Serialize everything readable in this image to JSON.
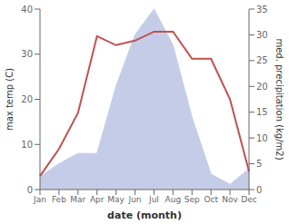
{
  "chart_data": {
    "type": "line",
    "xlabel": "date (month)",
    "ylabel": "max temp (C)",
    "y2label": "med. precipitation (kg/m2)",
    "categories": [
      "Jan",
      "Feb",
      "Mar",
      "Apr",
      "May",
      "Jun",
      "Jul",
      "Aug",
      "Sep",
      "Oct",
      "Nov",
      "Dec"
    ],
    "series": [
      {
        "type": "area",
        "axis": "y2",
        "color": "#c5cce8",
        "values": [
          2.5,
          5,
          7,
          7,
          20,
          30,
          35,
          28,
          14,
          3,
          1,
          4
        ]
      },
      {
        "type": "line",
        "color": "#c0504d",
        "values": [
          3,
          9,
          17,
          34,
          32,
          33,
          35,
          35,
          29,
          29,
          20,
          4
        ]
      }
    ],
    "ylim": [
      0,
      40
    ],
    "yticks": [
      0,
      10,
      20,
      30,
      40
    ],
    "y2lim": [
      0,
      35
    ],
    "y2ticks": [
      0,
      5,
      10,
      15,
      20,
      25,
      30,
      35
    ],
    "grid": false
  }
}
